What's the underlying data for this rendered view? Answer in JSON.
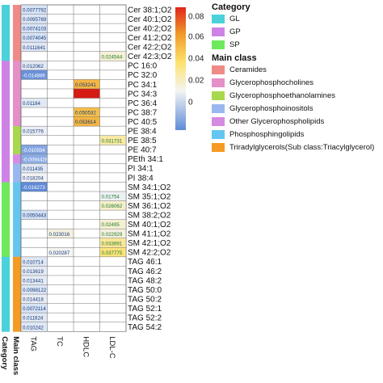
{
  "chart_data": {
    "type": "heatmap",
    "rows": [
      "Cer 38:1;O2",
      "Cer 40:1;O2",
      "Cer 40:2;O2",
      "Cer 41:2;O2",
      "Cer 42:2;O2",
      "Cer 42:3;O2",
      "PC 16:0",
      "PC 32:0",
      "PC 34:1",
      "PC 34:3",
      "PC 36:4",
      "PC 38:7",
      "PC 40:5",
      "PE 38:4",
      "PE 38:5",
      "PE 40:7",
      "PEth 34:1",
      "PI 34:1",
      "PI 38:4",
      "SM 34:1;O2",
      "SM 35:1;O2",
      "SM 36:1;O2",
      "SM 38:2;O2",
      "SM 40:1;O2",
      "SM 41:1;O2",
      "SM 42:1;O2",
      "SM 42:2;O2",
      "TAG 46:1",
      "TAG 46:2",
      "TAG 48:2",
      "TAG 50:0",
      "TAG 50:2",
      "TAG 52:1",
      "TAG 52:2",
      "TAG 54:2"
    ],
    "columns": [
      "TAG",
      "TC",
      "HDLC",
      "LDL-C"
    ],
    "annotation_columns": [
      "Category",
      "Main class"
    ],
    "row_category": [
      "GL",
      "GL",
      "GL",
      "GL",
      "GL",
      "GL",
      "GP",
      "GP",
      "GP",
      "GP",
      "GP",
      "GP",
      "GP",
      "GP",
      "GP",
      "GP",
      "GP",
      "GP",
      "GP",
      "SP",
      "SP",
      "SP",
      "SP",
      "SP",
      "SP",
      "SP",
      "SP",
      "GL",
      "GL",
      "GL",
      "GL",
      "GL",
      "GL",
      "GL",
      "GL"
    ],
    "row_main_class": [
      "Ceramides",
      "Ceramides",
      "Ceramides",
      "Ceramides",
      "Ceramides",
      "Ceramides",
      "Glycerophosphocholines",
      "Glycerophosphocholines",
      "Glycerophosphocholines",
      "Glycerophosphocholines",
      "Glycerophosphocholines",
      "Glycerophosphocholines",
      "Glycerophosphocholines",
      "Glycerophosphoethanolamines",
      "Glycerophosphoethanolamines",
      "Glycerophosphoethanolamines",
      "Other Glycerophospholipids",
      "Glycerophosphoinositols",
      "Glycerophosphoinositols",
      "Phosphosphingolipids",
      "Phosphosphingolipids",
      "Phosphosphingolipids",
      "Phosphosphingolipids",
      "Phosphosphingolipids",
      "Phosphosphingolipids",
      "Phosphosphingolipids",
      "Phosphosphingolipids",
      "Triradylglycerols(Sub class:Triacylglycerol)",
      "Triradylglycerols(Sub class:Triacylglycerol)",
      "Triradylglycerols(Sub class:Triacylglycerol)",
      "Triradylglycerols(Sub class:Triacylglycerol)",
      "Triradylglycerols(Sub class:Triacylglycerol)",
      "Triradylglycerols(Sub class:Triacylglycerol)",
      "Triradylglycerols(Sub class:Triacylglycerol)",
      "Triradylglycerols(Sub class:Triacylglycerol)"
    ],
    "cells": [
      {
        "row": 0,
        "col": 0,
        "value": 0.0077792,
        "label": "0.0077792"
      },
      {
        "row": 1,
        "col": 0,
        "value": 0.0095789,
        "label": "0.0095789"
      },
      {
        "row": 2,
        "col": 0,
        "value": 0.0074103,
        "label": "0.0074103"
      },
      {
        "row": 3,
        "col": 0,
        "value": 0.0074045,
        "label": "0.0074045"
      },
      {
        "row": 4,
        "col": 0,
        "value": 0.0111641,
        "label": "0.0111641"
      },
      {
        "row": 5,
        "col": 3,
        "value": 0.024544,
        "label": "0.024544"
      },
      {
        "row": 6,
        "col": 0,
        "value": 0.012062,
        "label": "0.012062"
      },
      {
        "row": 7,
        "col": 0,
        "value": -0.014886,
        "label": "-0.014886"
      },
      {
        "row": 8,
        "col": 2,
        "value": 0.053241,
        "label": "0.053241"
      },
      {
        "row": 9,
        "col": 2,
        "value": 0.085,
        "label": ""
      },
      {
        "row": 10,
        "col": 0,
        "value": 0.01184,
        "label": "0.01184"
      },
      {
        "row": 11,
        "col": 2,
        "value": 0.050532,
        "label": "0.050532"
      },
      {
        "row": 12,
        "col": 2,
        "value": 0.053614,
        "label": "0.053614"
      },
      {
        "row": 13,
        "col": 0,
        "value": 0.015776,
        "label": "0.015776"
      },
      {
        "row": 14,
        "col": 3,
        "value": 0.031731,
        "label": "0.031731"
      },
      {
        "row": 15,
        "col": 0,
        "value": -0.010594,
        "label": "-0.010594"
      },
      {
        "row": 16,
        "col": 0,
        "value": -0.0094428,
        "label": "-0.0094428"
      },
      {
        "row": 17,
        "col": 0,
        "value": 0.011435,
        "label": "0.011435"
      },
      {
        "row": 18,
        "col": 0,
        "value": 0.018204,
        "label": "0.018204"
      },
      {
        "row": 19,
        "col": 0,
        "value": -0.016273,
        "label": "-0.016273"
      },
      {
        "row": 20,
        "col": 3,
        "value": 0.01754,
        "label": "0.01754"
      },
      {
        "row": 21,
        "col": 3,
        "value": 0.026062,
        "label": "0.026062"
      },
      {
        "row": 22,
        "col": 0,
        "value": 0.0050443,
        "label": "0.0050443"
      },
      {
        "row": 23,
        "col": 3,
        "value": 0.02495,
        "label": "0.02495"
      },
      {
        "row": 24,
        "col": 1,
        "value": 0.023016,
        "label": "0.023016"
      },
      {
        "row": 24,
        "col": 3,
        "value": 0.022929,
        "label": "0.022929"
      },
      {
        "row": 25,
        "col": 3,
        "value": 0.033691,
        "label": "0.033691"
      },
      {
        "row": 26,
        "col": 1,
        "value": 0.020287,
        "label": "0.020287"
      },
      {
        "row": 26,
        "col": 3,
        "value": 0.037775,
        "label": "0.037775"
      },
      {
        "row": 27,
        "col": 0,
        "value": 0.010714,
        "label": "0.010714"
      },
      {
        "row": 28,
        "col": 0,
        "value": 0.013619,
        "label": "0.013619"
      },
      {
        "row": 29,
        "col": 0,
        "value": 0.013441,
        "label": "0.013441"
      },
      {
        "row": 30,
        "col": 0,
        "value": 0.0098122,
        "label": "0.0098122"
      },
      {
        "row": 31,
        "col": 0,
        "value": 0.014418,
        "label": "0.014418"
      },
      {
        "row": 32,
        "col": 0,
        "value": 0.0072114,
        "label": "0.0072114"
      },
      {
        "row": 33,
        "col": 0,
        "value": 0.011624,
        "label": "0.011624"
      },
      {
        "row": 34,
        "col": 0,
        "value": 0.010242,
        "label": "0.010242"
      }
    ],
    "color_scale": {
      "range": [
        -0.02,
        0.09
      ],
      "ticks": [
        0,
        0.02,
        0.04,
        0.06,
        0.08
      ],
      "stops": [
        {
          "value": -0.02,
          "color": "#4a78d0"
        },
        {
          "value": 0.0,
          "color": "#c6d9f5"
        },
        {
          "value": 0.02,
          "color": "#f4f4f4"
        },
        {
          "value": 0.04,
          "color": "#fde26e"
        },
        {
          "value": 0.06,
          "color": "#f0a02c"
        },
        {
          "value": 0.08,
          "color": "#e0261b"
        },
        {
          "value": 0.09,
          "color": "#cc1010"
        }
      ]
    },
    "category_colors": {
      "GL": "#4bd1d9",
      "GP": "#ce82e6",
      "SP": "#6ee95d"
    },
    "main_class_colors": {
      "Ceramides": "#f08a86",
      "Glycerophosphocholines": "#e48fc8",
      "Glycerophosphoethanolamines": "#a7d84d",
      "Glycerophosphoinositols": "#9ab8f0",
      "Other Glycerophospholipids": "#d68be3",
      "Phosphosphingolipids": "#64c6f0",
      "Triradylglycerols(Sub class:Triacylglycerol)": "#f59a22"
    },
    "legend": {
      "category_title": "Category",
      "category_items": [
        "GL",
        "GP",
        "SP"
      ],
      "main_class_title": "Main class",
      "main_class_items": [
        "Ceramides",
        "Glycerophosphocholines",
        "Glycerophosphoethanolamines",
        "Glycerophosphoinositols",
        "Other Glycerophospholipids",
        "Phosphosphingolipids",
        "Triradylglycerols(Sub class:Triacylglycerol)"
      ]
    },
    "colorbar_tick_labels": [
      "0.08",
      "0.06",
      "0.04",
      "0.02",
      "0"
    ]
  }
}
